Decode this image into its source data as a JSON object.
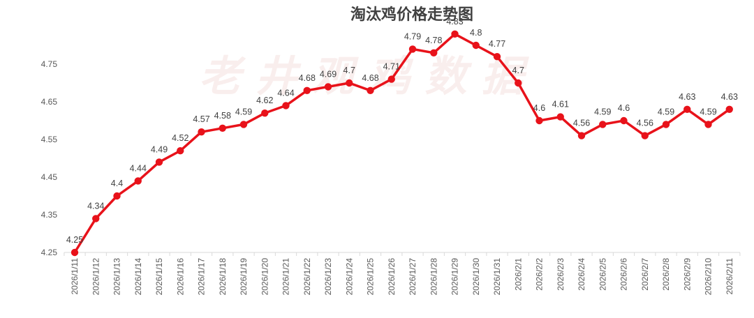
{
  "chart_data": {
    "type": "line",
    "title": "淘汰鸡价格走势图",
    "watermark": "老 井 观 鸡 数 据",
    "xlabel": "",
    "ylabel": "",
    "ylim": [
      4.25,
      4.8
    ],
    "yticks": [
      4.25,
      4.35,
      4.45,
      4.55,
      4.65,
      4.75
    ],
    "ytick_labels": [
      "4.25",
      "4.35",
      "4.45",
      "4.55",
      "4.65",
      "4.75"
    ],
    "grid": false,
    "line_color": "#e8121a",
    "categories": [
      "2026/1/11",
      "2026/1/12",
      "2026/1/13",
      "2026/1/14",
      "2026/1/15",
      "2026/1/16",
      "2026/1/17",
      "2026/1/18",
      "2026/1/19",
      "2026/1/20",
      "2026/1/21",
      "2026/1/22",
      "2026/1/23",
      "2026/1/24",
      "2026/1/25",
      "2026/1/26",
      "2026/1/27",
      "2026/1/28",
      "2026/1/29",
      "2026/1/30",
      "2026/1/31",
      "2026/2/1",
      "2026/2/2",
      "2026/2/3",
      "2026/2/4",
      "2026/2/5",
      "2026/2/6",
      "2026/2/7",
      "2026/2/8",
      "2026/2/9",
      "2026/2/10",
      "2026/2/11"
    ],
    "values": [
      4.25,
      4.34,
      4.4,
      4.44,
      4.49,
      4.52,
      4.57,
      4.58,
      4.59,
      4.62,
      4.64,
      4.68,
      4.69,
      4.7,
      4.68,
      4.71,
      4.79,
      4.78,
      4.83,
      4.8,
      4.77,
      4.7,
      4.6,
      4.61,
      4.56,
      4.59,
      4.6,
      4.56,
      4.59,
      4.63,
      4.59,
      4.63
    ],
    "data_labels": [
      "4.25",
      "4.34",
      "4.4",
      "4.44",
      "4.49",
      "4.52",
      "4.57",
      "4.58",
      "4.59",
      "4.62",
      "4.64",
      "4.68",
      "4.69",
      "4.7",
      "4.68",
      "4.71",
      "4.79",
      "4.78",
      "4.83",
      "4.8",
      "4.77",
      "4.7",
      "4.6",
      "4.61",
      "4.56",
      "4.59",
      "4.6",
      "4.56",
      "4.59",
      "4.63",
      "4.59",
      "4.63"
    ]
  }
}
